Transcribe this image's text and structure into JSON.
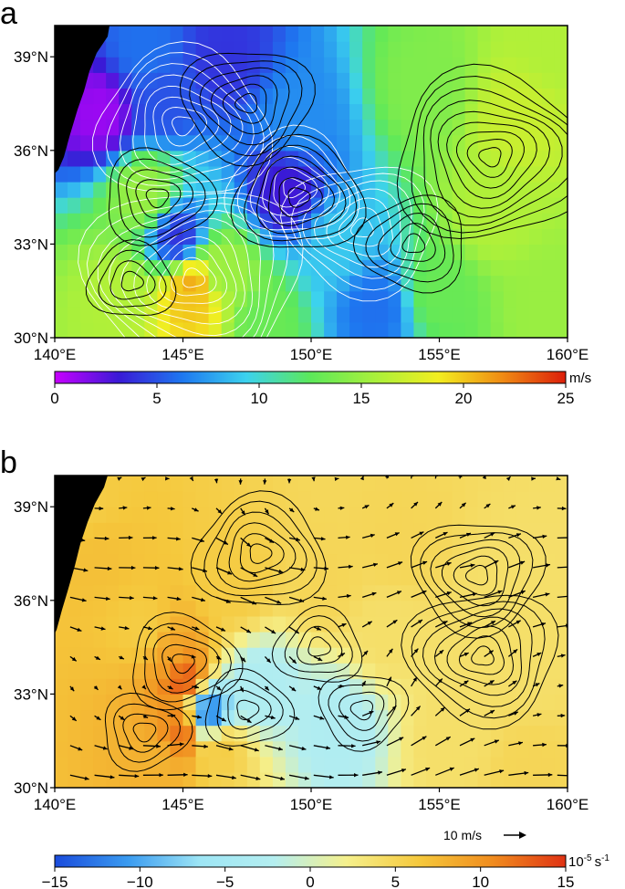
{
  "panels": [
    {
      "label": "a",
      "colorbar": {
        "ticks": [
          "0",
          "5",
          "10",
          "15",
          "20",
          "25"
        ],
        "unit": "m/s"
      }
    },
    {
      "label": "b",
      "vector_scale_label": "10 m/s",
      "colorbar": {
        "ticks": [
          "−15",
          "−10",
          "−5",
          "0",
          "5",
          "10",
          "15"
        ],
        "unit": "10",
        "unit_exp": "-5",
        "unit_suffix": "s",
        "unit_suffix_exp": "-1"
      }
    }
  ],
  "chart_data": [
    {
      "type": "heatmap",
      "panel": "a",
      "title": "",
      "x_ticks": [
        "140°E",
        "145°E",
        "150°E",
        "155°E",
        "160°E"
      ],
      "y_ticks": [
        "30°N",
        "33°N",
        "36°N",
        "39°N"
      ],
      "xlim": [
        140,
        160
      ],
      "ylim": [
        30,
        40
      ],
      "grid": false,
      "legend": "colorbar-bottom",
      "colorscale": {
        "range": [
          0,
          25
        ],
        "unit": "m/s",
        "stops": [
          "#c800ff",
          "#3a1ad6",
          "#1e78f0",
          "#3cd2ee",
          "#5ce85a",
          "#a8f03c",
          "#f2ee20",
          "#f08c14",
          "#dc1e0a"
        ]
      },
      "field_centers": [
        {
          "lon": 141.8,
          "lat": 37.2,
          "value": 1
        },
        {
          "lon": 144.2,
          "lat": 37.6,
          "value": 5
        },
        {
          "lon": 146.6,
          "lat": 39.0,
          "value": 4
        },
        {
          "lon": 143.5,
          "lat": 39.2,
          "value": 6
        },
        {
          "lon": 149.5,
          "lat": 37.0,
          "value": 7
        },
        {
          "lon": 149.0,
          "lat": 34.7,
          "value": 3
        },
        {
          "lon": 144.8,
          "lat": 33.2,
          "value": 4
        },
        {
          "lon": 152.5,
          "lat": 31.0,
          "value": 6
        },
        {
          "lon": 151.0,
          "lat": 33.0,
          "value": 9
        },
        {
          "lon": 142.5,
          "lat": 31.4,
          "value": 16
        },
        {
          "lon": 145.4,
          "lat": 31.7,
          "value": 21
        },
        {
          "lon": 145.4,
          "lat": 31.2,
          "value": 20
        },
        {
          "lon": 143.5,
          "lat": 34.6,
          "value": 15
        },
        {
          "lon": 146.5,
          "lat": 32.0,
          "value": 15
        },
        {
          "lon": 154.5,
          "lat": 38.0,
          "value": 14
        },
        {
          "lon": 158.0,
          "lat": 37.0,
          "value": 17
        },
        {
          "lon": 157.0,
          "lat": 34.0,
          "value": 16
        },
        {
          "lon": 159.2,
          "lat": 31.0,
          "value": 15
        },
        {
          "lon": 159.5,
          "lat": 39.5,
          "value": 16
        },
        {
          "lon": 155.0,
          "lat": 31.5,
          "value": 13
        },
        {
          "lon": 148.0,
          "lat": 30.5,
          "value": 13
        }
      ],
      "contour_centers": [
        {
          "lon": 145.0,
          "lat": 36.8,
          "color": "white",
          "rings": 8
        },
        {
          "lon": 149.3,
          "lat": 34.8,
          "color": "white",
          "rings": 6
        },
        {
          "lon": 145.4,
          "lat": 31.9,
          "color": "white",
          "rings": 10
        },
        {
          "lon": 152.0,
          "lat": 33.5,
          "color": "white",
          "rings": 7
        },
        {
          "lon": 147.5,
          "lat": 37.5,
          "color": "black",
          "rings": 6
        },
        {
          "lon": 157.0,
          "lat": 35.8,
          "color": "black",
          "rings": 9
        },
        {
          "lon": 144.0,
          "lat": 34.5,
          "color": "black",
          "rings": 5
        },
        {
          "lon": 149.5,
          "lat": 34.5,
          "color": "black",
          "rings": 6
        },
        {
          "lon": 143.0,
          "lat": 31.8,
          "color": "black",
          "rings": 4
        },
        {
          "lon": 154.0,
          "lat": 33.0,
          "color": "black",
          "rings": 5
        }
      ]
    },
    {
      "type": "heatmap",
      "panel": "b",
      "title": "",
      "x_ticks": [
        "140°E",
        "145°E",
        "150°E",
        "155°E",
        "160°E"
      ],
      "y_ticks": [
        "30°N",
        "33°N",
        "36°N",
        "39°N"
      ],
      "xlim": [
        140,
        160
      ],
      "ylim": [
        30,
        40
      ],
      "grid": false,
      "legend": "colorbar-bottom",
      "colorscale": {
        "range": [
          -15,
          15
        ],
        "stops": [
          "#1a4bdc",
          "#3a9bf0",
          "#9ee6f5",
          "#b4eef0",
          "#f5f08c",
          "#f5c83c",
          "#f08c1e",
          "#e03214"
        ]
      },
      "field_centers": [
        {
          "lon": 144.5,
          "lat": 34.2,
          "value": 9
        },
        {
          "lon": 145.0,
          "lat": 33.5,
          "value": 13
        },
        {
          "lon": 143.5,
          "lat": 35.0,
          "value": 6
        },
        {
          "lon": 145.0,
          "lat": 31.8,
          "value": 12
        },
        {
          "lon": 144.0,
          "lat": 30.8,
          "value": 8
        },
        {
          "lon": 146.5,
          "lat": 31.3,
          "value": 6
        },
        {
          "lon": 146.0,
          "lat": 32.4,
          "value": -12
        },
        {
          "lon": 147.0,
          "lat": 36.5,
          "value": 6
        },
        {
          "lon": 141.6,
          "lat": 37.5,
          "value": 7
        },
        {
          "lon": 141.2,
          "lat": 39.0,
          "value": 6
        },
        {
          "lon": 150.5,
          "lat": 36.5,
          "value": 5
        },
        {
          "lon": 153.5,
          "lat": 37.8,
          "value": 5
        },
        {
          "lon": 153.0,
          "lat": 35.0,
          "value": 4
        },
        {
          "lon": 157.5,
          "lat": 36.0,
          "value": 4
        },
        {
          "lon": 158.5,
          "lat": 34.0,
          "value": 4
        },
        {
          "lon": 151.0,
          "lat": 32.0,
          "value": -3
        },
        {
          "lon": 148.0,
          "lat": 33.2,
          "value": -3
        },
        {
          "lon": 155.5,
          "lat": 31.5,
          "value": 4
        },
        {
          "lon": 158.5,
          "lat": 30.5,
          "value": 5
        }
      ],
      "contour_centers": [
        {
          "lon": 145.0,
          "lat": 34.0,
          "rings": 5
        },
        {
          "lon": 148.0,
          "lat": 37.5,
          "rings": 6
        },
        {
          "lon": 150.3,
          "lat": 34.5,
          "rings": 4
        },
        {
          "lon": 156.7,
          "lat": 34.2,
          "rings": 7
        },
        {
          "lon": 156.5,
          "lat": 36.8,
          "rings": 6
        },
        {
          "lon": 152.0,
          "lat": 32.5,
          "rings": 4
        },
        {
          "lon": 143.5,
          "lat": 31.8,
          "rings": 4
        },
        {
          "lon": 147.5,
          "lat": 32.5,
          "rings": 4
        }
      ],
      "wind_vector_reference": {
        "speed": 10,
        "unit": "m/s"
      }
    }
  ]
}
